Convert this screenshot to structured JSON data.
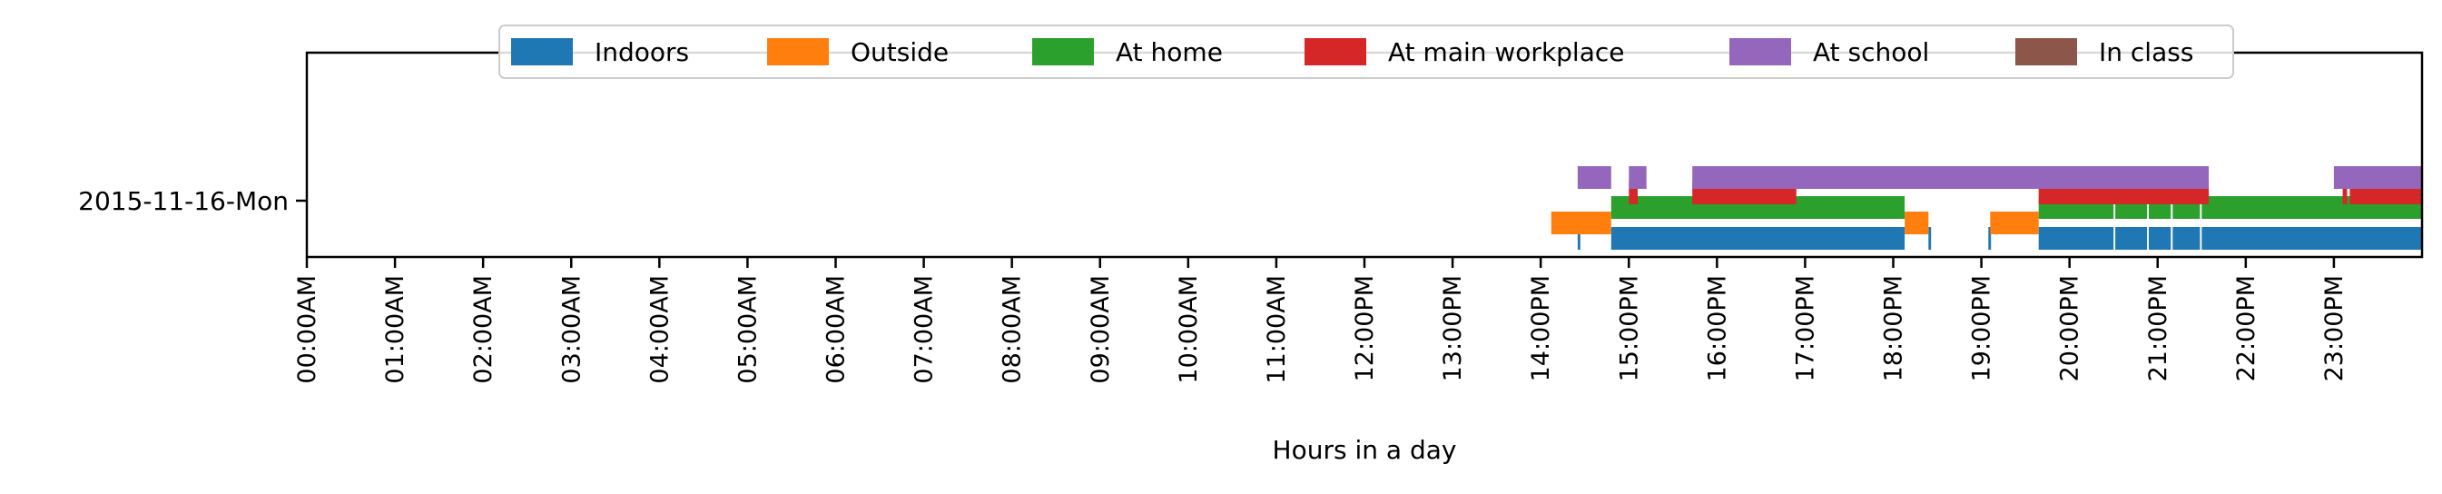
{
  "chart_data": {
    "type": "timeline",
    "xlabel": "Hours in a day",
    "xlim": [
      0,
      24
    ],
    "x_ticks": [
      "00:00AM",
      "01:00AM",
      "02:00AM",
      "03:00AM",
      "04:00AM",
      "05:00AM",
      "06:00AM",
      "07:00AM",
      "08:00AM",
      "09:00AM",
      "10:00AM",
      "11:00AM",
      "12:00PM",
      "13:00PM",
      "14:00PM",
      "15:00PM",
      "16:00PM",
      "17:00PM",
      "18:00PM",
      "19:00PM",
      "20:00PM",
      "21:00PM",
      "22:00PM",
      "23:00PM"
    ],
    "categories": [
      "2015-11-16-Mon"
    ],
    "legend_position": "top-center",
    "series": [
      {
        "name": "Indoors",
        "color": "#1f77b4",
        "intervals": [
          [
            14.42,
            14.45
          ],
          [
            14.8,
            18.13
          ],
          [
            18.4,
            18.43
          ],
          [
            19.08,
            19.11
          ],
          [
            19.65,
            20.5
          ],
          [
            20.52,
            20.88
          ],
          [
            20.9,
            21.15
          ],
          [
            21.17,
            21.48
          ],
          [
            21.5,
            24.0
          ]
        ]
      },
      {
        "name": "Outside",
        "color": "#ff7f0e",
        "intervals": [
          [
            14.12,
            14.8
          ],
          [
            18.13,
            18.4
          ],
          [
            19.1,
            19.65
          ]
        ]
      },
      {
        "name": "At home",
        "color": "#2ca02c",
        "intervals": [
          [
            14.8,
            18.13
          ],
          [
            19.65,
            20.5
          ],
          [
            20.52,
            20.88
          ],
          [
            20.9,
            21.15
          ],
          [
            21.17,
            21.48
          ],
          [
            21.5,
            24.0
          ]
        ]
      },
      {
        "name": "At main workplace",
        "color": "#d62728",
        "intervals": [
          [
            15.0,
            15.1
          ],
          [
            15.72,
            16.9
          ],
          [
            19.65,
            21.58
          ],
          [
            23.1,
            23.15
          ],
          [
            23.18,
            24.0
          ]
        ]
      },
      {
        "name": "At school",
        "color": "#9467bd",
        "intervals": [
          [
            14.42,
            14.8
          ],
          [
            15.0,
            15.2
          ],
          [
            15.72,
            21.58
          ],
          [
            23.0,
            24.0
          ]
        ]
      },
      {
        "name": "In class",
        "color": "#8c564b",
        "intervals": []
      }
    ]
  }
}
